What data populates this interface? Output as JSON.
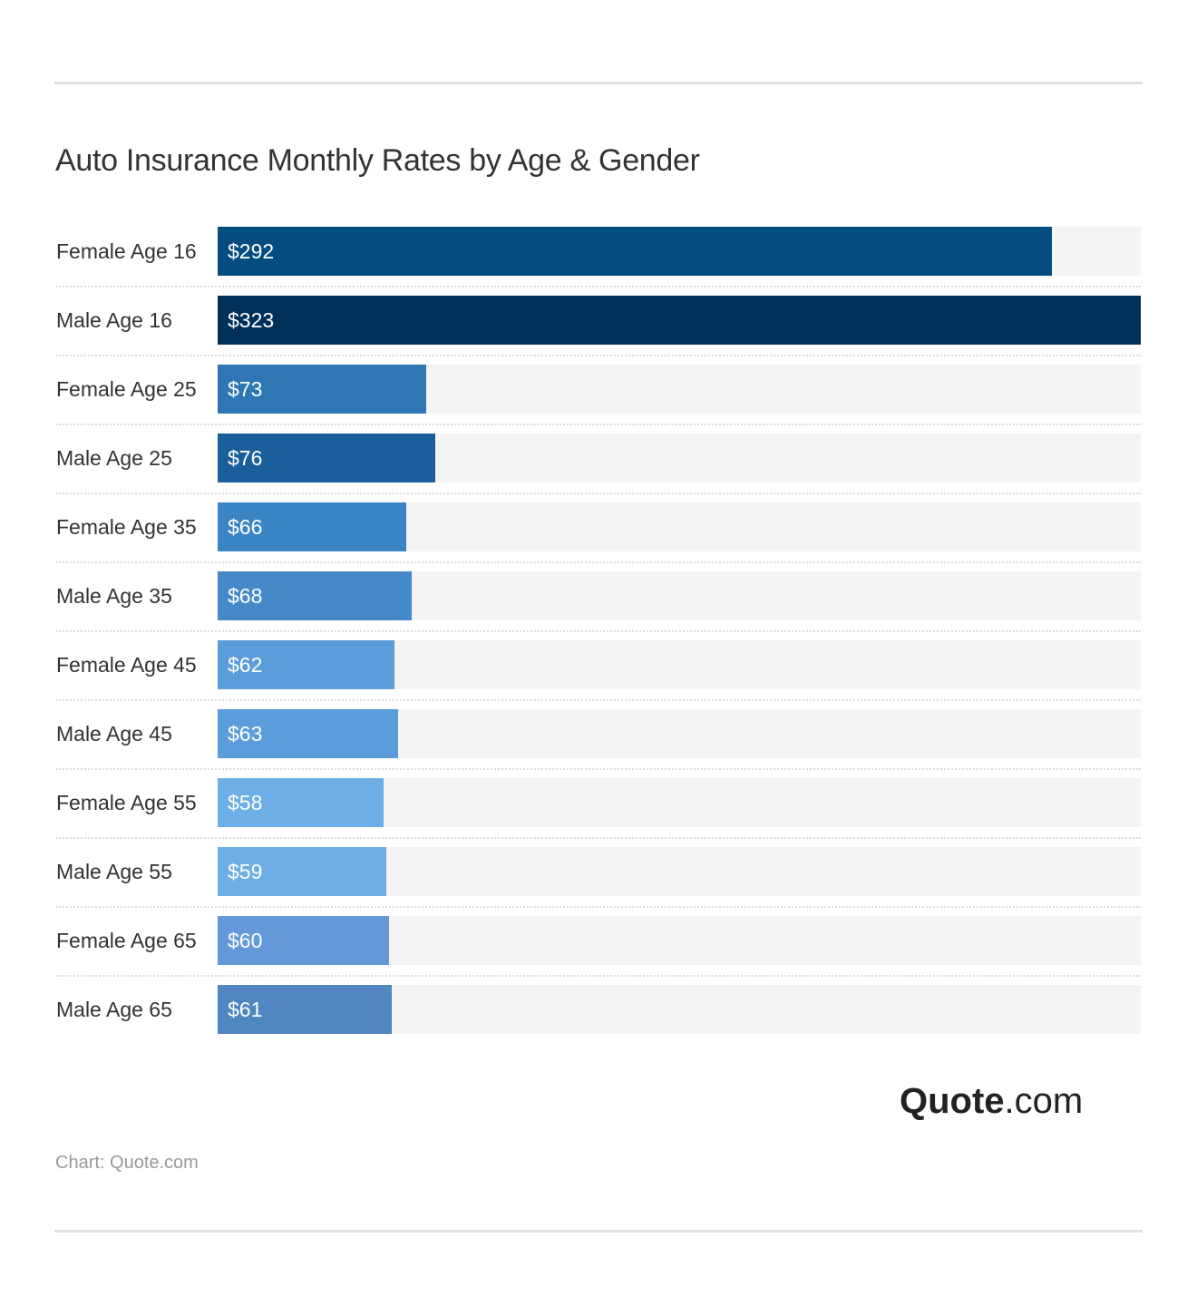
{
  "chart_data": {
    "type": "bar",
    "orientation": "horizontal",
    "title": "Auto Insurance Monthly Rates by Age & Gender",
    "categories": [
      "Female Age 16",
      "Male Age 16",
      "Female Age 25",
      "Male Age 25",
      "Female Age 35",
      "Male Age 35",
      "Female Age 45",
      "Male Age 45",
      "Female Age 55",
      "Male Age 55",
      "Female Age 65",
      "Male Age 65"
    ],
    "values": [
      292,
      323,
      73,
      76,
      66,
      68,
      62,
      63,
      58,
      59,
      60,
      61
    ],
    "value_labels": [
      "$292",
      "$323",
      "$73",
      "$76",
      "$66",
      "$68",
      "$62",
      "$63",
      "$58",
      "$59",
      "$60",
      "$61"
    ],
    "colors": [
      "#054d80",
      "#002f5a",
      "#2e77b4",
      "#1a5f9b",
      "#3c85c4",
      "#4589c9",
      "#5b9cda",
      "#5b9cda",
      "#6eaee6",
      "#6eaee6",
      "#6399d8",
      "#5087c0"
    ],
    "xlim": [
      0,
      323
    ],
    "grid": false
  },
  "logo": {
    "bold": "Quote",
    "light": ".com"
  },
  "source": "Chart: Quote.com"
}
